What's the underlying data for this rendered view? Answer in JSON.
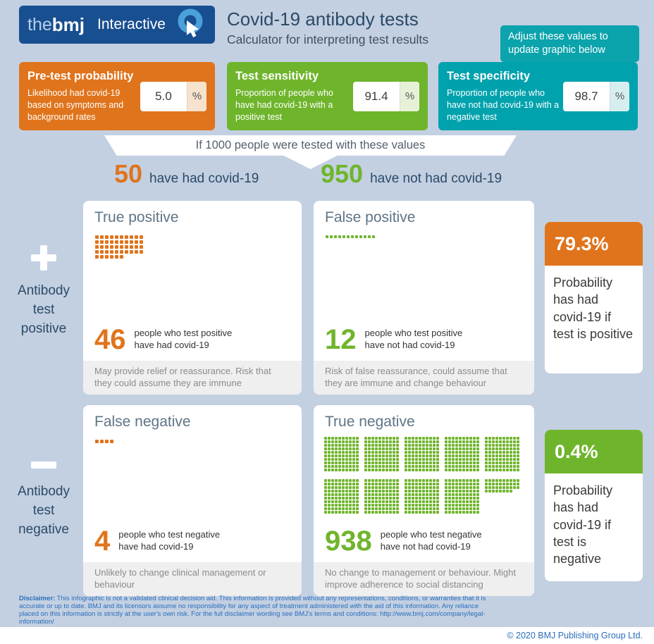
{
  "colors": {
    "background": "#c3d0e2",
    "navy": "#184f90",
    "orange": "#e0741c",
    "green": "#6fb52c",
    "teal": "#00a2ad",
    "bmj_blue": "#2a6ebb"
  },
  "header": {
    "logo_the": "the",
    "logo_bmj": "bmj",
    "logo_label": "Interactive",
    "title": "Covid-19 antibody tests",
    "subtitle": "Calculator for interpreting test results",
    "tooltip": "Adjust these values to update graphic below"
  },
  "inputs": [
    {
      "title": "Pre-test probability",
      "description": "Likelihood had covid-19 based on symptoms and background rates",
      "value": "5.0",
      "unit": "%"
    },
    {
      "title": "Test sensitivity",
      "description": "Proportion of people who have had covid-19 with a positive test",
      "value": "91.4",
      "unit": "%"
    },
    {
      "title": "Test specificity",
      "description": "Proportion of people who have not had covid-19 with a negative test",
      "value": "98.7",
      "unit": "%"
    }
  ],
  "banner": "If 1000 people were tested with these values",
  "columns": {
    "had": {
      "count": "50",
      "label": "have had covid-19"
    },
    "not_had": {
      "count": "950",
      "label": "have not had covid-19"
    }
  },
  "rails": {
    "positive": {
      "label": "Antibody\ntest\npositive"
    },
    "negative": {
      "label": "Antibody\ntest\nnegative"
    }
  },
  "outcomes": {
    "true_positive": {
      "title": "True positive",
      "count": "46",
      "caption": "people who test positive\nhave had covid-19",
      "note": "May provide relief or reassurance. Risk that they could assume they are immune"
    },
    "false_positive": {
      "title": "False positive",
      "count": "12",
      "caption": "people who test positive\nhave not had covid-19",
      "note": "Risk of false reassurance, could assume that they are immune and change behaviour"
    },
    "false_negative": {
      "title": "False negative",
      "count": "4",
      "caption": "people who test negative\nhave had covid-19",
      "note": "Unlikely to change clinical management or behaviour"
    },
    "true_negative": {
      "title": "True negative",
      "count": "938",
      "caption": "people who test negative\nhave not had covid-19",
      "note": "No change to management or behaviour. Might improve adherence to social distancing"
    }
  },
  "dot_matrices": {
    "true_positive": {
      "count": 46,
      "per_row": 10,
      "size": 5,
      "gap": 2,
      "color": "#e0741c"
    },
    "false_positive": {
      "count": 12,
      "per_row": 12,
      "size": 4,
      "gap": 2,
      "color": "#6fb52c"
    },
    "false_negative": {
      "count": 4,
      "per_row": 10,
      "size": 5,
      "gap": 2,
      "color": "#e0741c"
    },
    "true_negative": {
      "count": 938,
      "per_row": 10,
      "size": 4,
      "gap": 1,
      "color": "#6fb52c",
      "block_size": 100
    }
  },
  "results": {
    "positive": {
      "value": "79.3%",
      "text": "Probability has had covid-19 if test is positive"
    },
    "negative": {
      "value": "0.4%",
      "text": "Probability has had covid-19 if test is negative"
    }
  },
  "footer": {
    "disclaimer_label": "Disclaimer:",
    "disclaimer_text": " This infographic is not a validated clinical decision aid. This information is provided without any representations, conditions, or warranties that it is accurate or up to date. BMJ and its licensors assume no responsibility for any aspect of treatment administered with the aid of this information. Any reliance placed on this information is strictly at the user's own risk. For the full disclaimer wording see BMJ's terms and conditions: ",
    "disclaimer_link": "http://www.bmj.com/company/legal-information/",
    "copyright": "© 2020 BMJ Publishing Group Ltd."
  }
}
